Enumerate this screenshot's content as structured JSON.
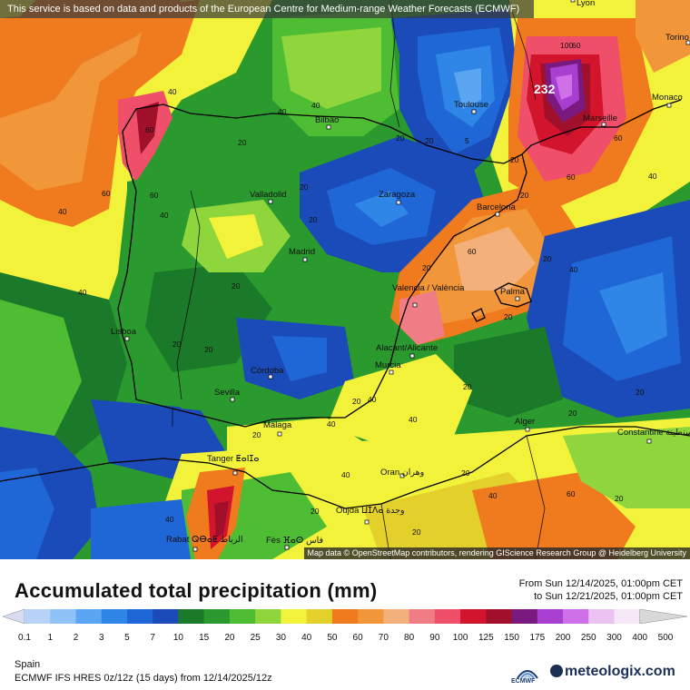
{
  "banner": "This service is based on data and products of the European Centre for Medium-range Weather Forecasts (ECMWF)",
  "attribution": "Map data © OpenStreetMap contributors, rendering GIScience Research Group @ Heidelberg University",
  "title": "Accumulated total precipitation (mm)",
  "period": {
    "from": "From Sun 12/14/2025, 01:00pm CET",
    "to": "to Sun 12/21/2025, 01:00pm CET"
  },
  "region": "Spain",
  "model": "ECMWF IFS HRES 0z/12z (15 days) from 12/14/2025/12z",
  "logos": {
    "ecmwf": "ECMWF",
    "meteologix": "meteologix.com"
  },
  "legend": {
    "labels": [
      "0.1",
      "1",
      "2",
      "3",
      "5",
      "7",
      "10",
      "15",
      "20",
      "25",
      "30",
      "40",
      "50",
      "60",
      "70",
      "80",
      "90",
      "100",
      "125",
      "150",
      "175",
      "200",
      "250",
      "300",
      "400",
      "500"
    ],
    "colors": [
      "#d9dcf0",
      "#b7d3f7",
      "#8fc2f7",
      "#5aa6f2",
      "#2f86e6",
      "#1f66d6",
      "#1b4bb8",
      "#1b7a2a",
      "#2a9a2e",
      "#4fbd34",
      "#8ed63c",
      "#f2f23a",
      "#e3d02a",
      "#f07a1e",
      "#f2963a",
      "#f4b07a",
      "#f07d86",
      "#f04f6a",
      "#d2142c",
      "#a0102a",
      "#7a1a7e",
      "#a83fd0",
      "#d070e8",
      "#ecc2f2",
      "#f7e8f7",
      "#d8d8d8"
    ]
  },
  "map_labels": {
    "cities": [
      "Lyon",
      "Torino",
      "Monaco",
      "Marseille",
      "Toulouse",
      "Bilbao",
      "Valladolid",
      "Zaragoza",
      "Barcelona",
      "Madrid",
      "Valencia / València",
      "Palma",
      "Lisboa",
      "Córdoba",
      "Alacant/Alicante",
      "Murcia",
      "Sevilla",
      "Málaga",
      "Alger",
      "Constantine قسنطينة",
      "Tanger ⵟⴰⵏⵊⴰ",
      "Oran وهران",
      "Oujda ⵡⵊⴷⴰ وجدة",
      "Rabat ⵕⴱⴰⵟ الرباط",
      "Fès ⴼⴰⵙ فاس"
    ],
    "max_value": "232",
    "isohyet_values": [
      "40",
      "40",
      "60",
      "20",
      "40",
      "60",
      "20",
      "40",
      "60",
      "40",
      "20",
      "20",
      "5",
      "20",
      "20",
      "20",
      "60",
      "60",
      "60",
      "20",
      "20",
      "20",
      "40",
      "40",
      "20",
      "20",
      "40",
      "40",
      "20",
      "20",
      "40",
      "20",
      "40",
      "40",
      "20",
      "20",
      "20",
      "20",
      "20",
      "60",
      "40",
      "20",
      "20",
      "40",
      "100",
      "60"
    ]
  }
}
